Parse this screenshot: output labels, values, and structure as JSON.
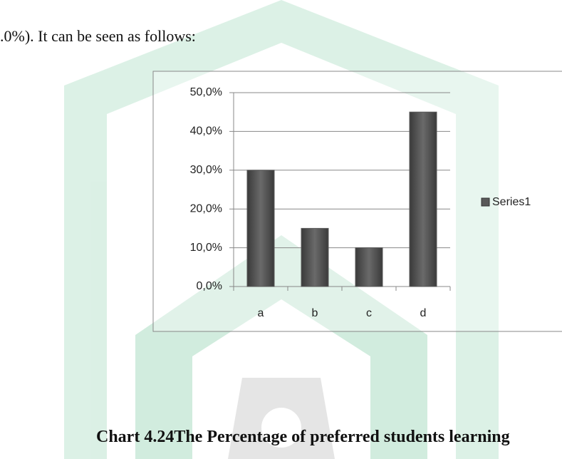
{
  "document": {
    "intro": ".0%). It can be seen as follows:",
    "caption": "Chart 4.24The Percentage of preferred students learning"
  },
  "chart_data": {
    "type": "bar",
    "categories": [
      "a",
      "b",
      "c",
      "d"
    ],
    "series": [
      {
        "name": "Series1",
        "color": "#595959",
        "values": [
          30,
          15,
          10,
          45
        ]
      }
    ],
    "ylim": [
      0,
      50
    ],
    "yticks": [
      {
        "value": 0,
        "label": "0,0%"
      },
      {
        "value": 10,
        "label": "10,0%"
      },
      {
        "value": 20,
        "label": "20,0%"
      },
      {
        "value": 30,
        "label": "30,0%"
      },
      {
        "value": 40,
        "label": "40,0%"
      },
      {
        "value": 50,
        "label": "50,0%"
      }
    ],
    "grid": true,
    "legend": "right"
  }
}
